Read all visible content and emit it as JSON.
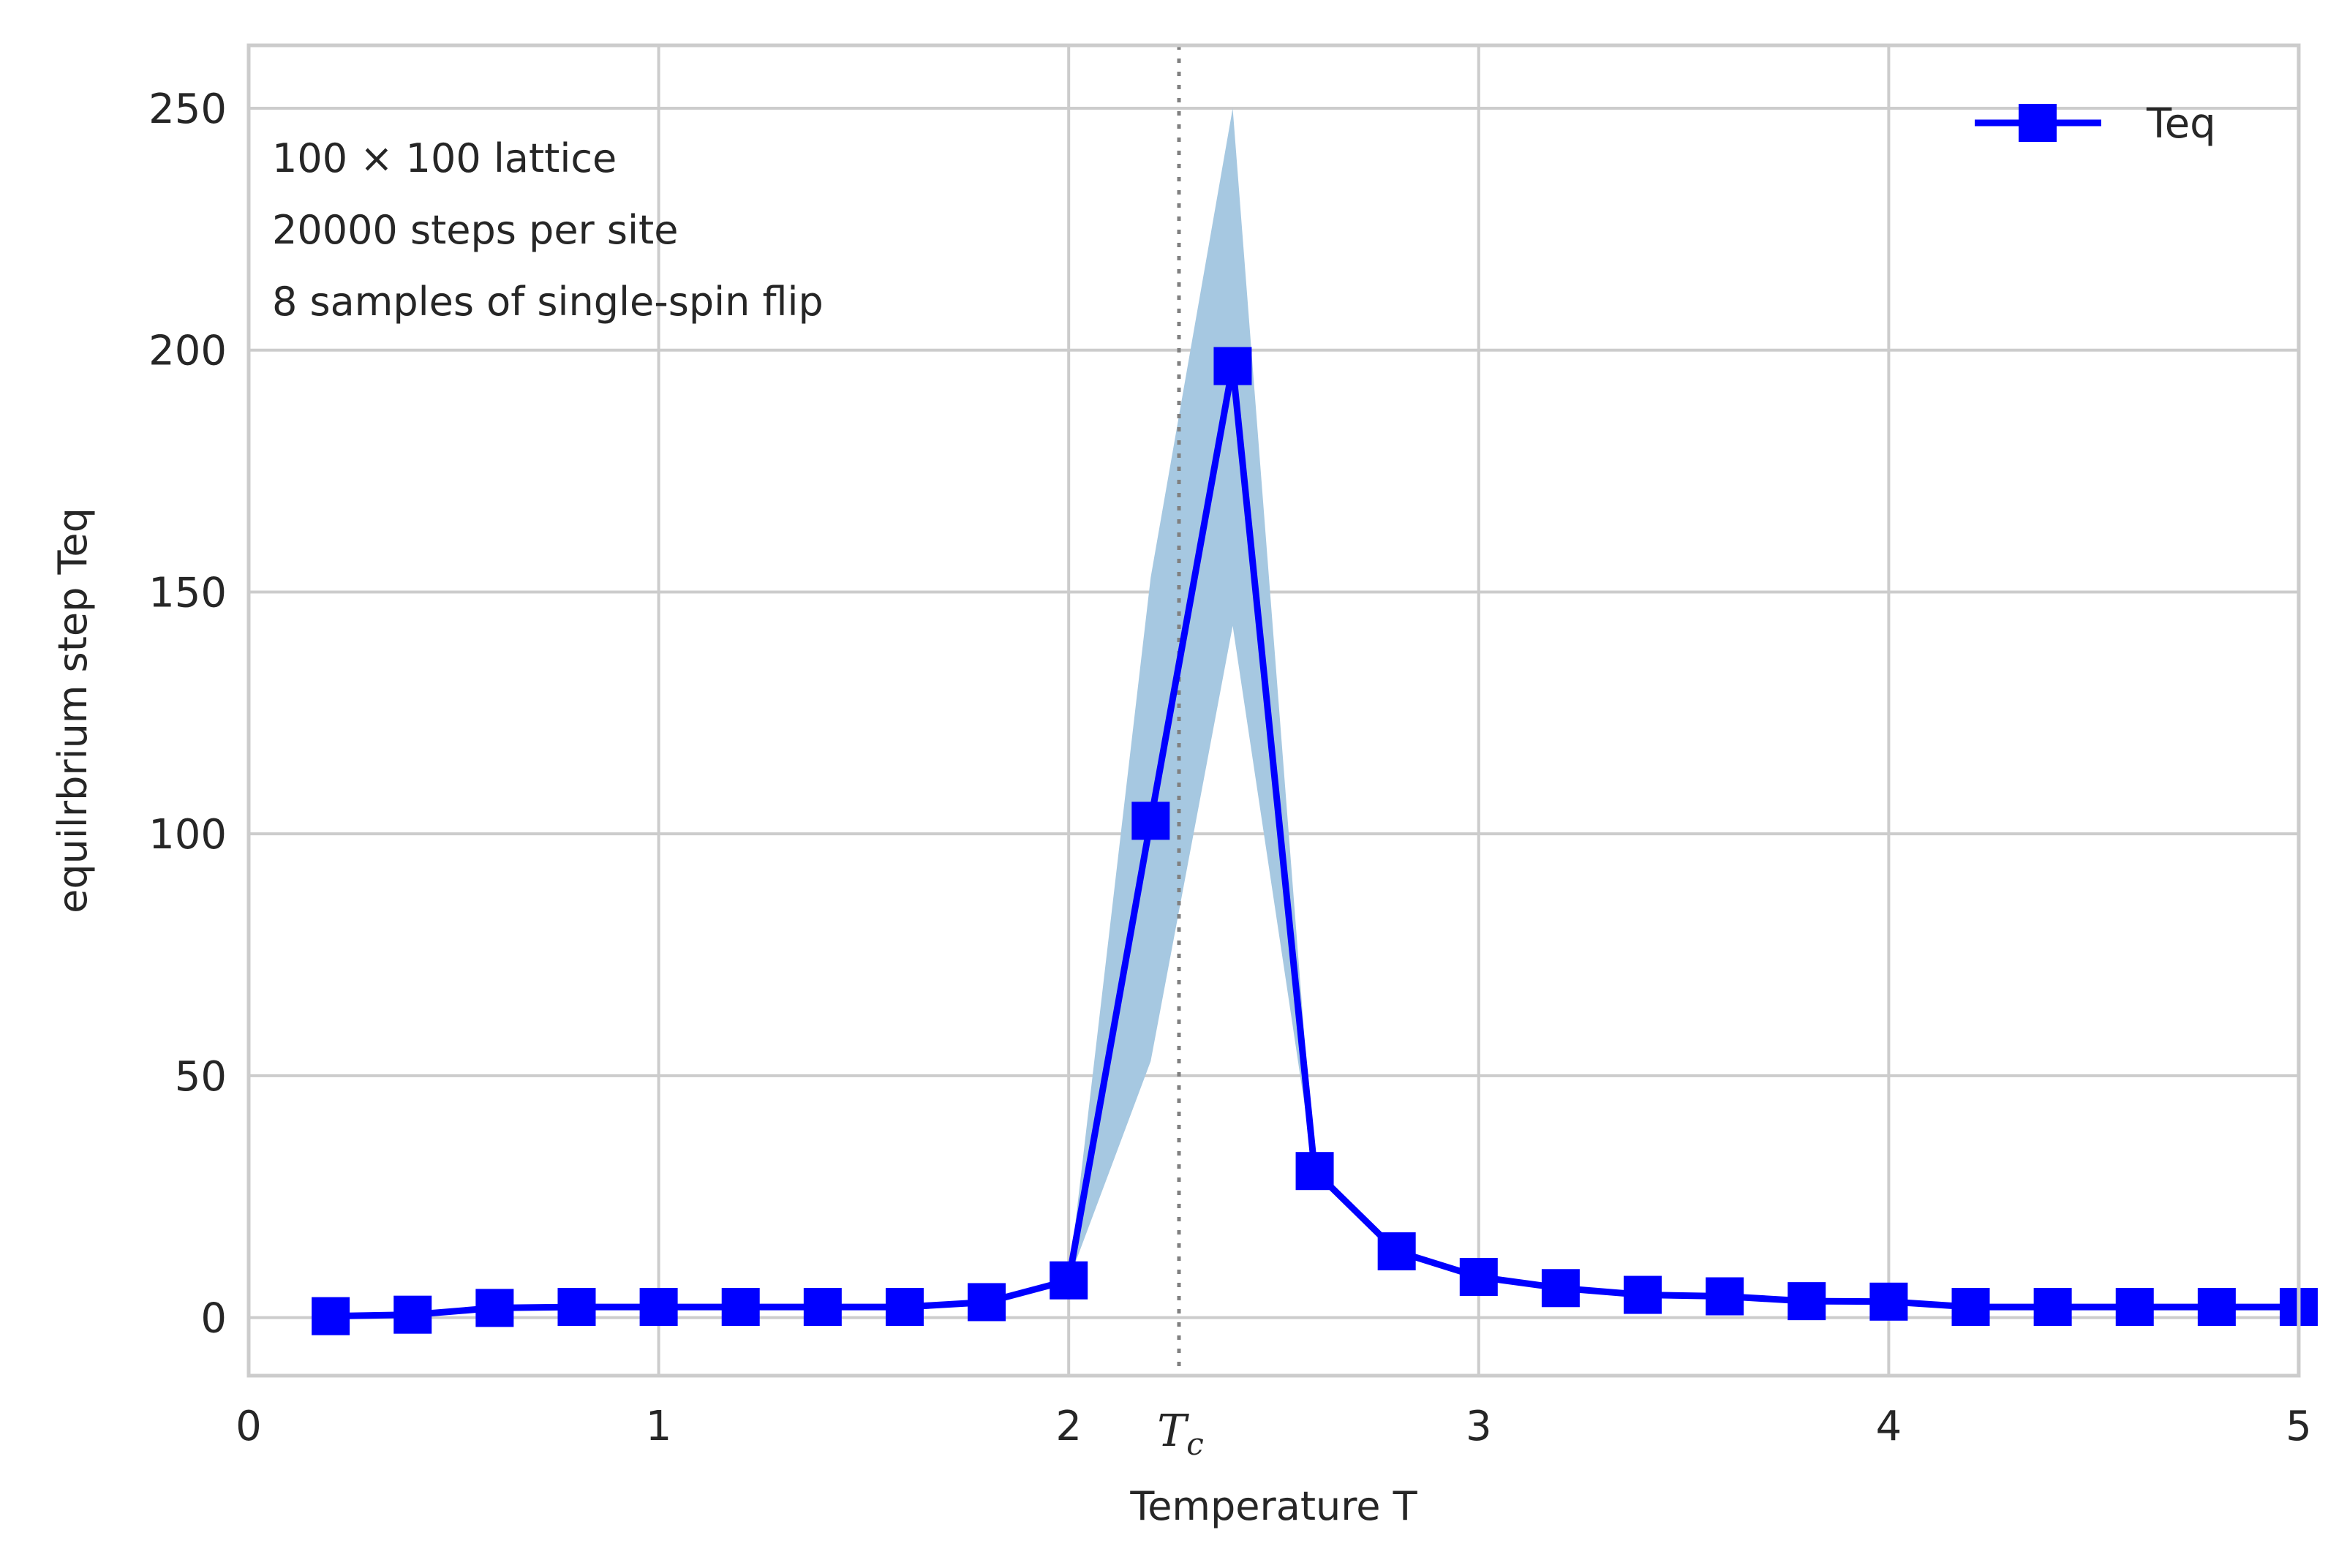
{
  "chart_data": {
    "type": "line",
    "title": "",
    "xlabel": "Temperature T",
    "ylabel": "equilrbrium step Teq",
    "xlim": [
      0,
      5
    ],
    "ylim": [
      -12,
      263
    ],
    "xticks": [
      0,
      1,
      2,
      3,
      4,
      5
    ],
    "xtick_labels": [
      "0",
      "1",
      "2",
      "3",
      "4",
      "5"
    ],
    "yticks": [
      0,
      50,
      100,
      150,
      200,
      250
    ],
    "ytick_labels": [
      "0",
      "50",
      "100",
      "150",
      "200",
      "250"
    ],
    "grid": true,
    "legend_position": "top-right",
    "annotations": [
      "100 × 100 lattice",
      "20000 steps per site",
      "8 samples of single-spin flip"
    ],
    "critical_temperature": {
      "value": 2.269,
      "label_base": "T",
      "label_sub": "c",
      "style": "dotted"
    },
    "series": [
      {
        "name": "Teq",
        "color": "#0000ff",
        "marker": "square",
        "x": [
          0.2,
          0.4,
          0.6,
          0.8,
          1.0,
          1.2,
          1.4,
          1.6,
          1.8,
          2.0,
          2.2,
          2.4,
          2.6,
          2.8,
          3.0,
          3.2,
          3.4,
          3.6,
          3.8,
          4.0,
          4.2,
          4.4,
          4.6,
          4.8,
          5.0
        ],
        "y": [
          0.3,
          0.6,
          2.0,
          2.2,
          2.2,
          2.2,
          2.2,
          2.2,
          3.2,
          7.7,
          102.7,
          196.7,
          30.3,
          13.7,
          8.4,
          6.1,
          4.7,
          4.4,
          3.4,
          3.3,
          2.2,
          2.2,
          2.2,
          2.2,
          2.2
        ],
        "band_lower": [
          0.3,
          0.6,
          2.0,
          2.2,
          2.2,
          2.2,
          2.2,
          2.2,
          3.2,
          7.7,
          53.0,
          143.0,
          30.0,
          13.5,
          8.3,
          6.0,
          4.6,
          4.3,
          3.3,
          3.2,
          2.1,
          2.1,
          2.1,
          2.1,
          2.1
        ],
        "band_upper": [
          0.3,
          0.6,
          2.0,
          2.2,
          2.2,
          2.2,
          2.2,
          2.2,
          3.2,
          7.7,
          153.0,
          250.0,
          30.6,
          13.9,
          8.5,
          6.2,
          4.8,
          4.5,
          3.5,
          3.4,
          2.3,
          2.3,
          2.3,
          2.3,
          2.3
        ],
        "band_color": "#a6c8e1"
      }
    ],
    "colors": {
      "grid": "#cccccc",
      "spine": "#cccccc",
      "tc_line": "#808080",
      "text": "#262626"
    }
  }
}
